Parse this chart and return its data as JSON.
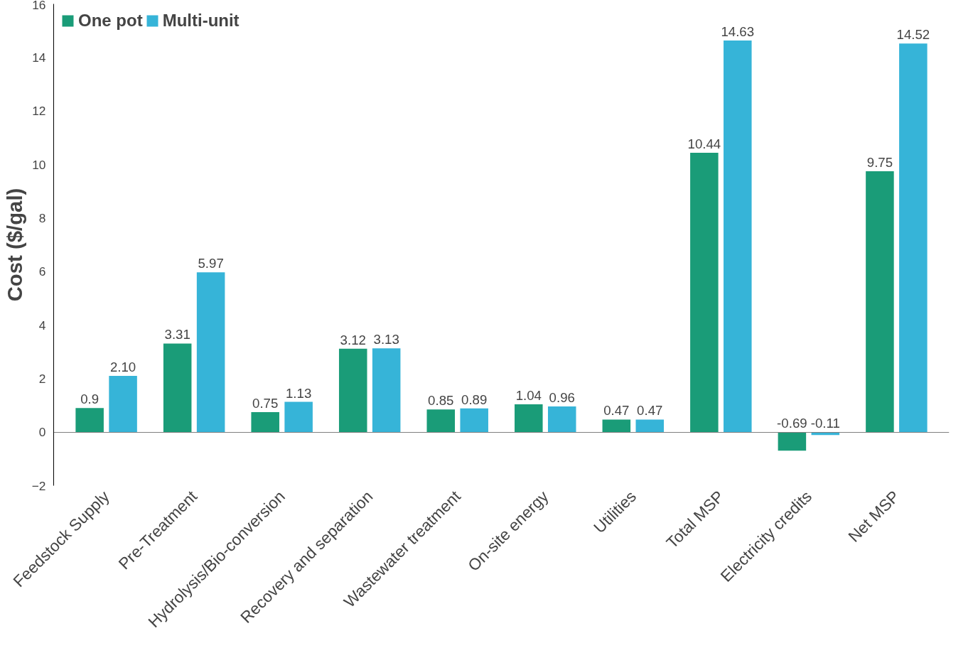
{
  "chart_data": {
    "type": "bar",
    "ylabel": "Cost ($/gal)",
    "categories": [
      "Feedstock Supply",
      "Pre-Treatment",
      "Hydrolysis/Bio-conversion",
      "Recovery and separation",
      "Wastewater treatment",
      "On-site energy",
      "Utilities",
      "Total MSP",
      "Electricity credits",
      "Net MSP"
    ],
    "series": [
      {
        "name": "One pot",
        "color": "#1a9c78",
        "values": [
          0.9,
          3.31,
          0.75,
          3.12,
          0.85,
          1.04,
          0.47,
          10.44,
          -0.69,
          9.75
        ],
        "value_labels": [
          "0.9",
          "3.31",
          "0.75",
          "3.12",
          "0.85",
          "1.04",
          "0.47",
          "10.44",
          "-0.69",
          "9.75"
        ]
      },
      {
        "name": "Multi-unit",
        "color": "#36b4d8",
        "values": [
          2.1,
          5.97,
          1.13,
          3.13,
          0.89,
          0.96,
          0.47,
          14.63,
          -0.11,
          14.52
        ],
        "value_labels": [
          "2.10",
          "5.97",
          "1.13",
          "3.13",
          "0.89",
          "0.96",
          "0.47",
          "14.63",
          "-0.11",
          "14.52"
        ]
      }
    ],
    "ylim": [
      -2,
      16
    ],
    "yticks": [
      -2,
      0,
      2,
      4,
      6,
      8,
      10,
      12,
      14,
      16
    ],
    "legend": "top left"
  }
}
